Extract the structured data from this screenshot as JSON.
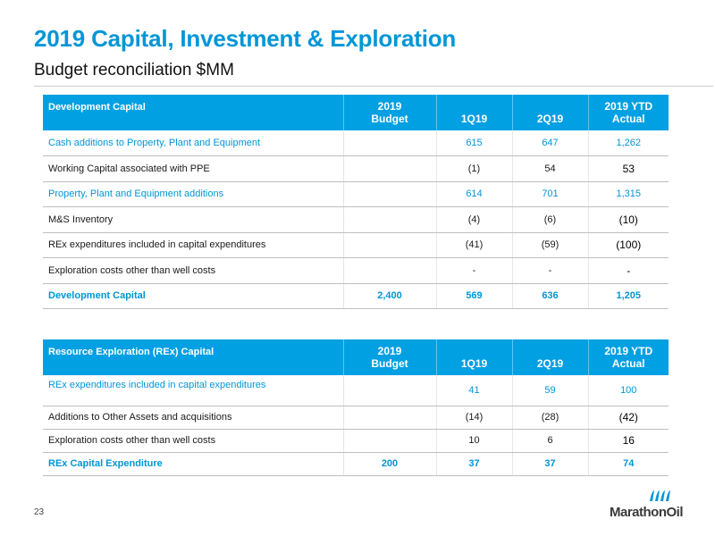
{
  "title": "2019 Capital, Investment & Exploration",
  "subtitle": "Budget reconciliation $MM",
  "dev_table": {
    "header": {
      "label": "Development Capital",
      "budget_l1": "2019",
      "budget_l2": "Budget",
      "q1": "1Q19",
      "q2": "2Q19",
      "ytd_l1": "2019 YTD",
      "ytd_l2": "Actual"
    },
    "rows": [
      {
        "label": "Cash additions to Property, Plant and Equipment",
        "budget": "",
        "q1": "615",
        "q2": "647",
        "ytd": "1,262"
      },
      {
        "label": "Working Capital associated with PPE",
        "budget": "",
        "q1": "(1)",
        "q2": "54",
        "ytd": "53"
      },
      {
        "label": "Property, Plant and Equipment additions",
        "budget": "",
        "q1": "614",
        "q2": "701",
        "ytd": "1,315"
      },
      {
        "label": "M&S Inventory",
        "budget": "",
        "q1": "(4)",
        "q2": "(6)",
        "ytd": "(10)"
      },
      {
        "label": "REx expenditures included in capital expenditures",
        "budget": "",
        "q1": "(41)",
        "q2": "(59)",
        "ytd": "(100)"
      },
      {
        "label": "Exploration costs other than well costs",
        "budget": "",
        "q1": "-",
        "q2": "-",
        "ytd": "-"
      },
      {
        "label": "Development Capital",
        "budget": "2,400",
        "q1": "569",
        "q2": "636",
        "ytd": "1,205"
      }
    ]
  },
  "rex_table": {
    "header": {
      "label": "Resource Exploration (REx) Capital",
      "budget_l1": "2019",
      "budget_l2": "Budget",
      "q1": "1Q19",
      "q2": "2Q19",
      "ytd_l1": "2019 YTD",
      "ytd_l2": "Actual"
    },
    "rows": [
      {
        "label": "REx expenditures included in capital expenditures",
        "budget": "",
        "q1": "41",
        "q2": "59",
        "ytd": "100"
      },
      {
        "label": "Additions to Other Assets and acquisitions",
        "budget": "",
        "q1": "(14)",
        "q2": "(28)",
        "ytd": "(42)"
      },
      {
        "label": "Exploration costs other than well costs",
        "budget": "",
        "q1": "10",
        "q2": "6",
        "ytd": "16"
      },
      {
        "label": "REx Capital Expenditure",
        "budget": "200",
        "q1": "37",
        "q2": "37",
        "ytd": "74"
      }
    ]
  },
  "footer": {
    "page_number": "23",
    "logo_text": "MarathonOil"
  },
  "colors": {
    "accent": "#0096d6",
    "header_bg": "#00a0e3"
  }
}
